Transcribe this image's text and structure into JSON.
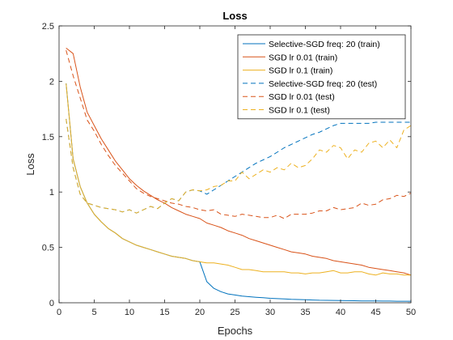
{
  "chart_data": {
    "type": "line",
    "title": "Loss",
    "xlabel": "Epochs",
    "ylabel": "Loss",
    "xlim": [
      0,
      50
    ],
    "ylim": [
      0,
      2.5
    ],
    "xticks": [
      "0",
      "5",
      "10",
      "15",
      "20",
      "25",
      "30",
      "35",
      "40",
      "45",
      "50"
    ],
    "yticks": [
      "0",
      "0.5",
      "1",
      "1.5",
      "2",
      "2.5"
    ],
    "grid": false,
    "legend_position": "top-right",
    "x": [
      1,
      2,
      3,
      4,
      5,
      6,
      7,
      8,
      9,
      10,
      11,
      12,
      13,
      14,
      15,
      16,
      17,
      18,
      19,
      20,
      21,
      22,
      23,
      24,
      25,
      26,
      27,
      28,
      29,
      30,
      31,
      32,
      33,
      34,
      35,
      36,
      37,
      38,
      39,
      40,
      41,
      42,
      43,
      44,
      45,
      46,
      47,
      48,
      49,
      50
    ],
    "series": [
      {
        "name": "Selective-SGD freq: 20 (train)",
        "color": "#0072bd",
        "dash": false,
        "values": [
          1.98,
          1.3,
          1.05,
          0.9,
          0.8,
          0.73,
          0.67,
          0.63,
          0.58,
          0.55,
          0.52,
          0.5,
          0.48,
          0.46,
          0.44,
          0.42,
          0.41,
          0.4,
          0.38,
          0.37,
          0.19,
          0.13,
          0.1,
          0.08,
          0.07,
          0.06,
          0.055,
          0.05,
          0.045,
          0.04,
          0.037,
          0.034,
          0.031,
          0.029,
          0.027,
          0.025,
          0.023,
          0.022,
          0.021,
          0.02,
          0.019,
          0.018,
          0.017,
          0.016,
          0.016,
          0.015,
          0.015,
          0.014,
          0.014,
          0.014
        ]
      },
      {
        "name": "SGD lr 0.01 (train)",
        "color": "#d95319",
        "dash": false,
        "values": [
          2.3,
          2.25,
          1.95,
          1.72,
          1.6,
          1.48,
          1.38,
          1.28,
          1.2,
          1.12,
          1.06,
          1.01,
          0.97,
          0.93,
          0.9,
          0.86,
          0.83,
          0.8,
          0.78,
          0.76,
          0.72,
          0.7,
          0.68,
          0.65,
          0.63,
          0.61,
          0.58,
          0.56,
          0.54,
          0.52,
          0.5,
          0.48,
          0.46,
          0.45,
          0.44,
          0.42,
          0.41,
          0.4,
          0.38,
          0.37,
          0.36,
          0.35,
          0.34,
          0.32,
          0.31,
          0.3,
          0.29,
          0.28,
          0.27,
          0.25
        ]
      },
      {
        "name": "SGD lr 0.1 (train)",
        "color": "#edb120",
        "dash": false,
        "values": [
          1.98,
          1.3,
          1.05,
          0.9,
          0.8,
          0.73,
          0.67,
          0.63,
          0.58,
          0.55,
          0.52,
          0.5,
          0.48,
          0.46,
          0.44,
          0.42,
          0.41,
          0.4,
          0.38,
          0.37,
          0.36,
          0.36,
          0.35,
          0.34,
          0.32,
          0.3,
          0.3,
          0.29,
          0.28,
          0.28,
          0.28,
          0.28,
          0.27,
          0.27,
          0.26,
          0.27,
          0.27,
          0.28,
          0.29,
          0.27,
          0.27,
          0.28,
          0.28,
          0.26,
          0.25,
          0.27,
          0.26,
          0.26,
          0.25,
          0.25
        ]
      },
      {
        "name": "Selective-SGD freq: 20 (test)",
        "color": "#0072bd",
        "dash": true,
        "values": [
          1.66,
          1.22,
          0.98,
          0.9,
          0.88,
          0.86,
          0.85,
          0.84,
          0.82,
          0.84,
          0.81,
          0.84,
          0.87,
          0.85,
          0.9,
          0.94,
          0.92,
          1.0,
          1.02,
          1.01,
          0.98,
          1.02,
          1.06,
          1.1,
          1.14,
          1.18,
          1.22,
          1.26,
          1.29,
          1.32,
          1.36,
          1.4,
          1.43,
          1.46,
          1.49,
          1.52,
          1.54,
          1.57,
          1.6,
          1.62,
          1.62,
          1.62,
          1.62,
          1.62,
          1.63,
          1.63,
          1.63,
          1.63,
          1.63,
          1.63
        ]
      },
      {
        "name": "SGD lr 0.01 (test)",
        "color": "#d95319",
        "dash": true,
        "values": [
          2.28,
          2.05,
          1.85,
          1.65,
          1.55,
          1.43,
          1.33,
          1.24,
          1.17,
          1.1,
          1.03,
          0.99,
          0.96,
          0.94,
          0.92,
          0.9,
          0.89,
          0.87,
          0.86,
          0.84,
          0.83,
          0.84,
          0.8,
          0.79,
          0.78,
          0.8,
          0.79,
          0.78,
          0.77,
          0.77,
          0.79,
          0.76,
          0.8,
          0.8,
          0.8,
          0.81,
          0.83,
          0.83,
          0.86,
          0.84,
          0.85,
          0.86,
          0.9,
          0.88,
          0.89,
          0.93,
          0.94,
          0.97,
          0.96,
          0.99
        ]
      },
      {
        "name": "SGD lr 0.1 (test)",
        "color": "#edb120",
        "dash": true,
        "values": [
          1.66,
          1.22,
          0.98,
          0.9,
          0.88,
          0.86,
          0.85,
          0.84,
          0.82,
          0.84,
          0.81,
          0.84,
          0.87,
          0.85,
          0.9,
          0.94,
          0.92,
          1.0,
          1.02,
          1.01,
          1.02,
          1.05,
          1.06,
          1.1,
          1.1,
          1.18,
          1.12,
          1.16,
          1.2,
          1.18,
          1.22,
          1.2,
          1.26,
          1.22,
          1.24,
          1.3,
          1.38,
          1.36,
          1.42,
          1.4,
          1.3,
          1.38,
          1.36,
          1.44,
          1.46,
          1.4,
          1.47,
          1.4,
          1.56,
          1.6
        ]
      }
    ]
  }
}
